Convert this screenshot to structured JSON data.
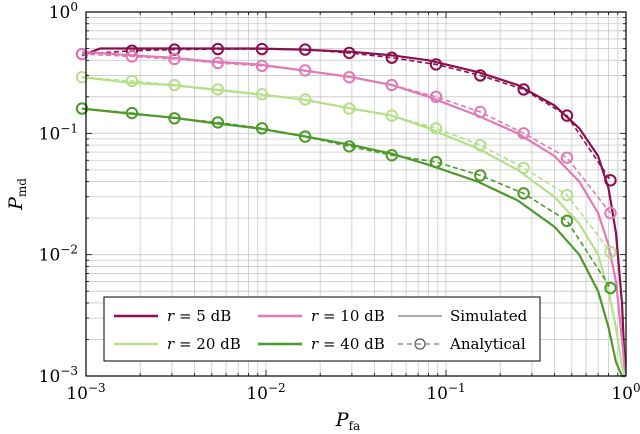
{
  "chart_data": {
    "type": "line",
    "xlabel": "P",
    "xlabel_sub": "fa",
    "ylabel": "P",
    "ylabel_sub": "md",
    "x_scale": "log",
    "y_scale": "log",
    "xlim": [
      0.001,
      1
    ],
    "ylim": [
      0.001,
      1
    ],
    "x_ticks": [
      {
        "value": 0.001,
        "base": "10",
        "exp": "−3"
      },
      {
        "value": 0.01,
        "base": "10",
        "exp": "−2"
      },
      {
        "value": 0.1,
        "base": "10",
        "exp": "−1"
      },
      {
        "value": 1,
        "base": "10",
        "exp": "0"
      }
    ],
    "y_ticks": [
      {
        "value": 0.001,
        "base": "10",
        "exp": "−3"
      },
      {
        "value": 0.01,
        "base": "10",
        "exp": "−2"
      },
      {
        "value": 0.1,
        "base": "10",
        "exp": "−1"
      },
      {
        "value": 1,
        "base": "10",
        "exp": "0"
      }
    ],
    "grid": true,
    "legend_position": "bottom-center",
    "legend": {
      "entries": [
        {
          "var": "r",
          "eq": " = 5 dB",
          "color": "#8b0f4f"
        },
        {
          "var": "r",
          "eq": " = 10 dB",
          "color": "#e07ab6"
        },
        {
          "var": "r",
          "eq": " = 20 dB",
          "color": "#b5e08a"
        },
        {
          "var": "r",
          "eq": " = 40 dB",
          "color": "#4d9a2a"
        }
      ],
      "style_entries": [
        {
          "label": "Simulated",
          "style": "solid"
        },
        {
          "label": "Analytical",
          "style": "dashed-circle"
        }
      ]
    },
    "series": [
      {
        "name": "r = 5 dB",
        "color": "#8b0f4f",
        "x": [
          0.00095,
          0.0012,
          0.0018,
          0.003,
          0.005,
          0.009,
          0.016,
          0.03,
          0.05,
          0.08,
          0.15,
          0.25,
          0.4,
          0.55,
          0.7,
          0.8,
          0.88,
          0.95,
          0.99
        ],
        "simulated": [
          0.44,
          0.5,
          0.5,
          0.5,
          0.5,
          0.5,
          0.49,
          0.47,
          0.44,
          0.4,
          0.32,
          0.25,
          0.17,
          0.11,
          0.065,
          0.035,
          0.015,
          0.004,
          0.001
        ],
        "analytical_x": [
          0.00095,
          0.0018,
          0.0031,
          0.0054,
          0.0095,
          0.0165,
          0.029,
          0.05,
          0.088,
          0.155,
          0.27,
          0.47,
          0.82
        ],
        "analytical_y": [
          0.45,
          0.48,
          0.49,
          0.495,
          0.495,
          0.49,
          0.46,
          0.42,
          0.37,
          0.3,
          0.23,
          0.14,
          0.041
        ]
      },
      {
        "name": "r = 10 dB",
        "color": "#e07ab6",
        "x": [
          0.00095,
          0.0018,
          0.003,
          0.005,
          0.009,
          0.016,
          0.03,
          0.05,
          0.08,
          0.15,
          0.25,
          0.4,
          0.55,
          0.7,
          0.8,
          0.88,
          0.95,
          0.99
        ],
        "simulated": [
          0.47,
          0.44,
          0.42,
          0.39,
          0.37,
          0.33,
          0.29,
          0.25,
          0.2,
          0.14,
          0.1,
          0.065,
          0.04,
          0.022,
          0.012,
          0.006,
          0.002,
          0.001
        ],
        "analytical_x": [
          0.00095,
          0.0018,
          0.0031,
          0.0054,
          0.0095,
          0.0165,
          0.029,
          0.05,
          0.088,
          0.155,
          0.27,
          0.47,
          0.82
        ],
        "analytical_y": [
          0.45,
          0.43,
          0.41,
          0.38,
          0.36,
          0.33,
          0.29,
          0.25,
          0.2,
          0.15,
          0.1,
          0.063,
          0.022
        ]
      },
      {
        "name": "r = 20 dB",
        "color": "#b5e08a",
        "x": [
          0.00095,
          0.0018,
          0.003,
          0.005,
          0.009,
          0.016,
          0.03,
          0.05,
          0.08,
          0.15,
          0.25,
          0.4,
          0.55,
          0.7,
          0.8,
          0.88,
          0.95,
          0.99
        ],
        "simulated": [
          0.29,
          0.26,
          0.25,
          0.23,
          0.21,
          0.19,
          0.16,
          0.14,
          0.11,
          0.075,
          0.05,
          0.03,
          0.018,
          0.01,
          0.005,
          0.0025,
          0.0012,
          0.001
        ],
        "analytical_x": [
          0.00095,
          0.0018,
          0.0031,
          0.0054,
          0.0095,
          0.0165,
          0.029,
          0.05,
          0.088,
          0.155,
          0.27,
          0.47,
          0.82
        ],
        "analytical_y": [
          0.29,
          0.27,
          0.25,
          0.23,
          0.21,
          0.19,
          0.16,
          0.14,
          0.11,
          0.08,
          0.052,
          0.031,
          0.0105
        ]
      },
      {
        "name": "r = 40 dB",
        "color": "#4d9a2a",
        "x": [
          0.00095,
          0.0018,
          0.003,
          0.005,
          0.009,
          0.016,
          0.03,
          0.05,
          0.08,
          0.15,
          0.25,
          0.4,
          0.55,
          0.7,
          0.8,
          0.88,
          0.95,
          0.99
        ],
        "simulated": [
          0.16,
          0.145,
          0.135,
          0.122,
          0.11,
          0.095,
          0.08,
          0.068,
          0.055,
          0.04,
          0.028,
          0.017,
          0.01,
          0.005,
          0.0025,
          0.0013,
          0.001,
          0.001
        ],
        "analytical_x": [
          0.00095,
          0.0018,
          0.0031,
          0.0054,
          0.0095,
          0.0165,
          0.029,
          0.05,
          0.088,
          0.155,
          0.27,
          0.47,
          0.82
        ],
        "analytical_y": [
          0.16,
          0.147,
          0.133,
          0.123,
          0.11,
          0.094,
          0.078,
          0.066,
          0.058,
          0.045,
          0.032,
          0.019,
          0.0053
        ]
      }
    ]
  }
}
